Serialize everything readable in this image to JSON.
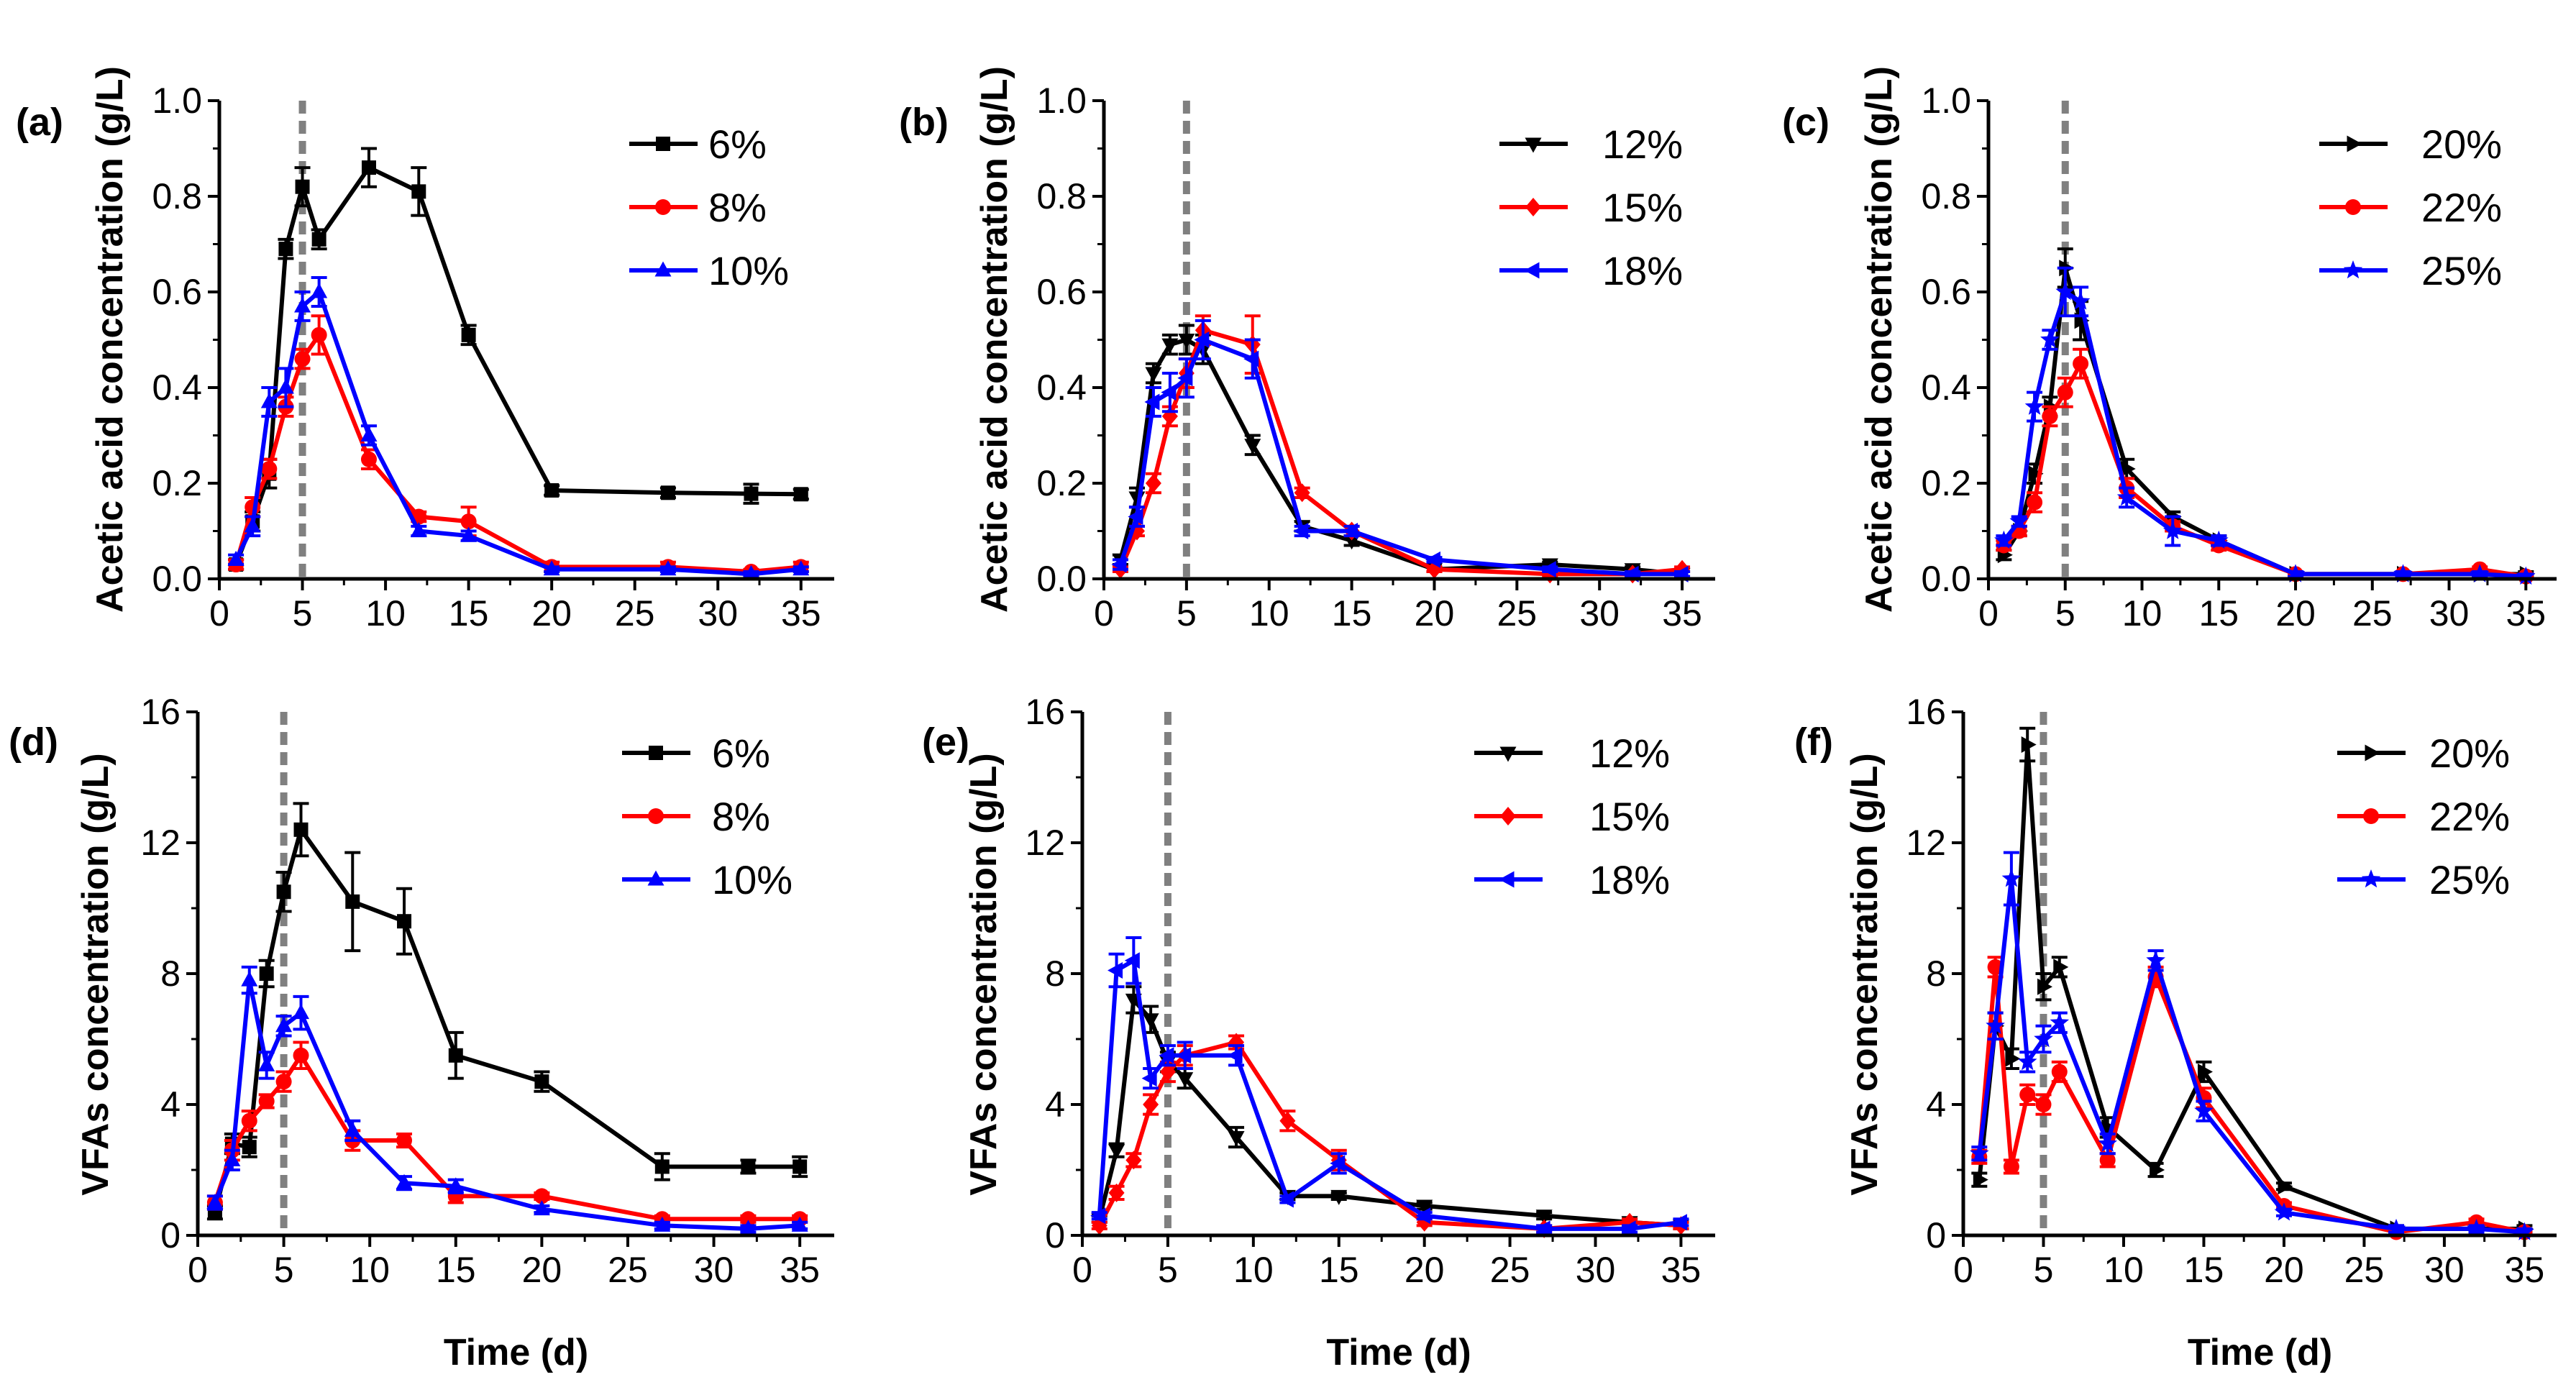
{
  "colors": {
    "black": "#000000",
    "red": "#ff0000",
    "blue": "#0000ff",
    "vline": "#808080"
  },
  "chart_data": [
    {
      "panel": "(a)",
      "type": "line",
      "ylabel": "Acetic acid concentration (g/L)",
      "xlabel": "",
      "xlim": [
        0,
        37
      ],
      "ylim": [
        0,
        1.0
      ],
      "xticks": [
        0,
        5,
        10,
        15,
        20,
        25,
        30,
        35
      ],
      "yticks": [
        0.0,
        0.2,
        0.4,
        0.6,
        0.8,
        1.0
      ],
      "ytick_labels": [
        "0.0",
        "0.2",
        "0.4",
        "0.6",
        "0.8",
        "1.0"
      ],
      "vline": 5,
      "series": [
        {
          "name": "6%",
          "color": "#000000",
          "marker": "square",
          "x": [
            1,
            2,
            3,
            4,
            5,
            6,
            9,
            12,
            15,
            20,
            27,
            32,
            35
          ],
          "y": [
            0.03,
            0.12,
            0.22,
            0.69,
            0.82,
            0.71,
            0.86,
            0.81,
            0.51,
            0.185,
            0.18,
            0.178,
            0.177
          ],
          "err": [
            0.01,
            0.02,
            0.03,
            0.02,
            0.04,
            0.02,
            0.04,
            0.05,
            0.02,
            0.01,
            0.01,
            0.02,
            0.01
          ]
        },
        {
          "name": "8%",
          "color": "#ff0000",
          "marker": "circle",
          "x": [
            1,
            2,
            3,
            4,
            5,
            6,
            9,
            12,
            15,
            20,
            27,
            32,
            35
          ],
          "y": [
            0.03,
            0.15,
            0.23,
            0.36,
            0.46,
            0.51,
            0.25,
            0.13,
            0.12,
            0.025,
            0.025,
            0.015,
            0.025
          ],
          "err": [
            0.01,
            0.02,
            0.02,
            0.02,
            0.02,
            0.04,
            0.02,
            0.01,
            0.03,
            0.01,
            0.01,
            0.005,
            0.01
          ]
        },
        {
          "name": "10%",
          "color": "#0000ff",
          "marker": "triangle-up",
          "x": [
            1,
            2,
            3,
            4,
            5,
            6,
            9,
            12,
            15,
            20,
            27,
            32,
            35
          ],
          "y": [
            0.04,
            0.11,
            0.37,
            0.4,
            0.57,
            0.6,
            0.3,
            0.1,
            0.09,
            0.02,
            0.02,
            0.01,
            0.02
          ],
          "err": [
            0.01,
            0.02,
            0.03,
            0.04,
            0.03,
            0.03,
            0.02,
            0.01,
            0.01,
            0.005,
            0.005,
            0.005,
            0.005
          ]
        }
      ]
    },
    {
      "panel": "(b)",
      "type": "line",
      "ylabel": "Acetic acid concentration (g/L)",
      "xlabel": "",
      "xlim": [
        0,
        37
      ],
      "ylim": [
        0,
        1.0
      ],
      "xticks": [
        0,
        5,
        10,
        15,
        20,
        25,
        30,
        35
      ],
      "yticks": [
        0.0,
        0.2,
        0.4,
        0.6,
        0.8,
        1.0
      ],
      "ytick_labels": [
        "0.0",
        "0.2",
        "0.4",
        "0.6",
        "0.8",
        "1.0"
      ],
      "vline": 5,
      "series": [
        {
          "name": "12%",
          "color": "#000000",
          "marker": "triangle-down",
          "x": [
            1,
            2,
            3,
            4,
            5,
            6,
            9,
            12,
            15,
            20,
            27,
            32,
            35
          ],
          "y": [
            0.04,
            0.17,
            0.43,
            0.49,
            0.5,
            0.48,
            0.28,
            0.11,
            0.08,
            0.02,
            0.03,
            0.02,
            0.01
          ],
          "err": [
            0.01,
            0.02,
            0.02,
            0.02,
            0.03,
            0.03,
            0.02,
            0.01,
            0.01,
            0.005,
            0.005,
            0.005,
            0.005
          ]
        },
        {
          "name": "15%",
          "color": "#ff0000",
          "marker": "diamond",
          "x": [
            1,
            2,
            3,
            4,
            5,
            6,
            9,
            12,
            15,
            20,
            27,
            32,
            35
          ],
          "y": [
            0.02,
            0.1,
            0.2,
            0.34,
            0.43,
            0.52,
            0.49,
            0.18,
            0.1,
            0.02,
            0.01,
            0.01,
            0.02
          ],
          "err": [
            0.005,
            0.01,
            0.02,
            0.02,
            0.03,
            0.03,
            0.06,
            0.01,
            0.01,
            0.005,
            0.005,
            0.005,
            0.005
          ]
        },
        {
          "name": "18%",
          "color": "#0000ff",
          "marker": "triangle-left",
          "x": [
            1,
            2,
            3,
            4,
            5,
            6,
            9,
            12,
            15,
            20,
            27,
            32,
            35
          ],
          "y": [
            0.03,
            0.13,
            0.37,
            0.39,
            0.42,
            0.5,
            0.46,
            0.1,
            0.1,
            0.04,
            0.02,
            0.01,
            0.01
          ],
          "err": [
            0.01,
            0.02,
            0.03,
            0.04,
            0.04,
            0.04,
            0.04,
            0.01,
            0.01,
            0.005,
            0.005,
            0.005,
            0.005
          ]
        }
      ]
    },
    {
      "panel": "(c)",
      "type": "line",
      "ylabel": "Acetic acid concentration (g/L)",
      "xlabel": "",
      "xlim": [
        0,
        37
      ],
      "ylim": [
        0,
        1.0
      ],
      "xticks": [
        0,
        5,
        10,
        15,
        20,
        25,
        30,
        35
      ],
      "yticks": [
        0.0,
        0.2,
        0.4,
        0.6,
        0.8,
        1.0
      ],
      "ytick_labels": [
        "0.0",
        "0.2",
        "0.4",
        "0.6",
        "0.8",
        "1.0"
      ],
      "vline": 5,
      "series": [
        {
          "name": "20%",
          "color": "#000000",
          "marker": "triangle-right",
          "x": [
            1,
            2,
            3,
            4,
            5,
            6,
            9,
            12,
            15,
            20,
            27,
            32,
            35
          ],
          "y": [
            0.05,
            0.1,
            0.22,
            0.36,
            0.65,
            0.54,
            0.23,
            0.13,
            0.08,
            0.01,
            0.01,
            0.01,
            0.01
          ],
          "err": [
            0.01,
            0.01,
            0.02,
            0.02,
            0.04,
            0.04,
            0.02,
            0.01,
            0.01,
            0.005,
            0.005,
            0.005,
            0.005
          ]
        },
        {
          "name": "22%",
          "color": "#ff0000",
          "marker": "circle",
          "x": [
            1,
            2,
            3,
            4,
            5,
            6,
            9,
            12,
            15,
            20,
            27,
            32,
            35
          ],
          "y": [
            0.07,
            0.1,
            0.16,
            0.34,
            0.39,
            0.45,
            0.19,
            0.11,
            0.07,
            0.01,
            0.01,
            0.02,
            0.005
          ],
          "err": [
            0.01,
            0.01,
            0.02,
            0.02,
            0.03,
            0.03,
            0.02,
            0.01,
            0.01,
            0.005,
            0.005,
            0.005,
            0.005
          ]
        },
        {
          "name": "25%",
          "color": "#0000ff",
          "marker": "star",
          "x": [
            1,
            2,
            3,
            4,
            5,
            6,
            9,
            12,
            15,
            20,
            27,
            32,
            35
          ],
          "y": [
            0.08,
            0.12,
            0.36,
            0.5,
            0.6,
            0.58,
            0.17,
            0.1,
            0.08,
            0.01,
            0.01,
            0.01,
            0.005
          ],
          "err": [
            0.01,
            0.01,
            0.03,
            0.02,
            0.05,
            0.03,
            0.02,
            0.03,
            0.01,
            0.005,
            0.005,
            0.005,
            0.005
          ]
        }
      ]
    },
    {
      "panel": "(d)",
      "type": "line",
      "ylabel": "VFAs concentration (g/L)",
      "xlabel": "Time (d)",
      "xlim": [
        0,
        37
      ],
      "ylim": [
        0,
        16
      ],
      "xticks": [
        0,
        5,
        10,
        15,
        20,
        25,
        30,
        35
      ],
      "yticks": [
        0,
        4,
        8,
        12,
        16
      ],
      "ytick_labels": [
        "0",
        "4",
        "8",
        "12",
        "16"
      ],
      "vline": 5,
      "series": [
        {
          "name": "6%",
          "color": "#000000",
          "marker": "square",
          "x": [
            1,
            2,
            3,
            4,
            5,
            6,
            9,
            12,
            15,
            20,
            27,
            32,
            35
          ],
          "y": [
            0.7,
            2.8,
            2.7,
            8.0,
            10.5,
            12.4,
            10.2,
            9.6,
            5.5,
            4.7,
            2.1,
            2.1,
            2.1
          ],
          "err": [
            0.2,
            0.3,
            0.3,
            0.4,
            0.6,
            0.8,
            1.5,
            1.0,
            0.7,
            0.3,
            0.4,
            0.2,
            0.3
          ]
        },
        {
          "name": "8%",
          "color": "#ff0000",
          "marker": "circle",
          "x": [
            1,
            2,
            3,
            4,
            5,
            6,
            9,
            12,
            15,
            20,
            27,
            32,
            35
          ],
          "y": [
            1.0,
            2.6,
            3.5,
            4.1,
            4.7,
            5.5,
            2.9,
            2.9,
            1.2,
            1.2,
            0.5,
            0.5,
            0.5
          ],
          "err": [
            0.2,
            0.3,
            0.3,
            0.2,
            0.3,
            0.4,
            0.3,
            0.2,
            0.2,
            0.1,
            0.1,
            0.1,
            0.1
          ]
        },
        {
          "name": "10%",
          "color": "#0000ff",
          "marker": "triangle-up",
          "x": [
            1,
            2,
            3,
            4,
            5,
            6,
            9,
            12,
            15,
            20,
            27,
            32,
            35
          ],
          "y": [
            1.0,
            2.3,
            7.8,
            5.2,
            6.4,
            6.8,
            3.2,
            1.6,
            1.5,
            0.8,
            0.3,
            0.2,
            0.3
          ],
          "err": [
            0.2,
            0.3,
            0.4,
            0.4,
            0.3,
            0.5,
            0.3,
            0.2,
            0.2,
            0.1,
            0.1,
            0.1,
            0.1
          ]
        }
      ]
    },
    {
      "panel": "(e)",
      "type": "line",
      "ylabel": "VFAs concentration (g/L)",
      "xlabel": "Time (d)",
      "xlim": [
        0,
        37
      ],
      "ylim": [
        0,
        16
      ],
      "xticks": [
        0,
        5,
        10,
        15,
        20,
        25,
        30,
        35
      ],
      "yticks": [
        0,
        4,
        8,
        12,
        16
      ],
      "ytick_labels": [
        "0",
        "4",
        "8",
        "12",
        "16"
      ],
      "vline": 5,
      "series": [
        {
          "name": "12%",
          "color": "#000000",
          "marker": "triangle-down",
          "x": [
            1,
            2,
            3,
            4,
            5,
            6,
            9,
            12,
            15,
            20,
            27,
            32,
            35
          ],
          "y": [
            0.5,
            2.6,
            7.2,
            6.6,
            5.3,
            4.8,
            3.0,
            1.2,
            1.2,
            0.9,
            0.6,
            0.4,
            0.3
          ],
          "err": [
            0.1,
            0.2,
            0.4,
            0.4,
            0.3,
            0.3,
            0.3,
            0.1,
            0.1,
            0.1,
            0.1,
            0.1,
            0.1
          ]
        },
        {
          "name": "15%",
          "color": "#ff0000",
          "marker": "diamond",
          "x": [
            1,
            2,
            3,
            4,
            5,
            6,
            9,
            12,
            15,
            20,
            27,
            32,
            35
          ],
          "y": [
            0.3,
            1.3,
            2.3,
            4.0,
            5.0,
            5.5,
            5.9,
            3.5,
            2.3,
            0.4,
            0.2,
            0.4,
            0.3
          ],
          "err": [
            0.1,
            0.2,
            0.2,
            0.3,
            0.3,
            0.3,
            0.2,
            0.3,
            0.3,
            0.1,
            0.1,
            0.1,
            0.1
          ]
        },
        {
          "name": "18%",
          "color": "#0000ff",
          "marker": "triangle-left",
          "x": [
            1,
            2,
            3,
            4,
            5,
            6,
            9,
            12,
            15,
            20,
            27,
            32,
            35
          ],
          "y": [
            0.6,
            8.1,
            8.4,
            4.8,
            5.5,
            5.5,
            5.5,
            1.1,
            2.2,
            0.6,
            0.2,
            0.2,
            0.4
          ],
          "err": [
            0.1,
            0.5,
            0.7,
            0.3,
            0.3,
            0.4,
            0.3,
            0.1,
            0.3,
            0.1,
            0.1,
            0.1,
            0.1
          ]
        }
      ]
    },
    {
      "panel": "(f)",
      "type": "line",
      "ylabel": "VFAs concentration (g/L)",
      "xlabel": "Time (d)",
      "xlim": [
        0,
        37
      ],
      "ylim": [
        0,
        16
      ],
      "xticks": [
        0,
        5,
        10,
        15,
        20,
        25,
        30,
        35
      ],
      "yticks": [
        0,
        4,
        8,
        12,
        16
      ],
      "ytick_labels": [
        "0",
        "4",
        "8",
        "12",
        "16"
      ],
      "vline": 5,
      "series": [
        {
          "name": "20%",
          "color": "#000000",
          "marker": "triangle-right",
          "x": [
            1,
            2,
            3,
            4,
            5,
            6,
            9,
            12,
            15,
            20,
            27,
            32,
            35
          ],
          "y": [
            1.7,
            6.4,
            5.4,
            15.0,
            7.6,
            8.2,
            3.3,
            2.0,
            5.0,
            1.5,
            0.2,
            0.2,
            0.2
          ],
          "err": [
            0.2,
            0.4,
            0.3,
            0.5,
            0.4,
            0.3,
            0.3,
            0.2,
            0.3,
            0.1,
            0.1,
            0.1,
            0.1
          ]
        },
        {
          "name": "22%",
          "color": "#ff0000",
          "marker": "circle",
          "x": [
            1,
            2,
            3,
            4,
            5,
            6,
            9,
            12,
            15,
            20,
            27,
            32,
            35
          ],
          "y": [
            2.4,
            8.2,
            2.1,
            4.3,
            4.0,
            5.0,
            2.3,
            7.9,
            4.2,
            0.9,
            0.1,
            0.4,
            0.1
          ],
          "err": [
            0.2,
            0.3,
            0.2,
            0.3,
            0.3,
            0.3,
            0.2,
            0.3,
            0.3,
            0.1,
            0.1,
            0.1,
            0.1
          ]
        },
        {
          "name": "25%",
          "color": "#0000ff",
          "marker": "star",
          "x": [
            1,
            2,
            3,
            4,
            5,
            6,
            9,
            12,
            15,
            20,
            27,
            32,
            35
          ],
          "y": [
            2.5,
            6.4,
            10.9,
            5.3,
            6.0,
            6.5,
            2.8,
            8.4,
            3.8,
            0.7,
            0.2,
            0.2,
            0.1
          ],
          "err": [
            0.2,
            0.4,
            0.8,
            0.3,
            0.4,
            0.3,
            0.3,
            0.3,
            0.3,
            0.1,
            0.1,
            0.1,
            0.1
          ]
        }
      ]
    }
  ]
}
